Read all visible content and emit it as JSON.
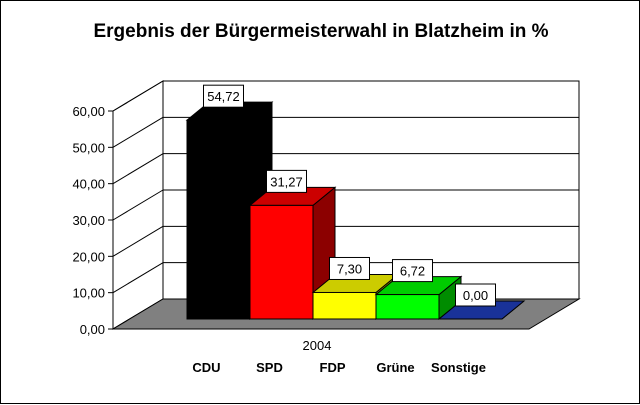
{
  "chart_data": {
    "type": "bar",
    "title": "Ergebnis der Bürgermeisterwahl in Blatzheim in %",
    "categories": [
      "2004"
    ],
    "series": [
      {
        "name": "CDU",
        "values": [
          54.72
        ],
        "color": "#000000",
        "label": "54,72"
      },
      {
        "name": "SPD",
        "values": [
          31.27
        ],
        "color": "#ff0000",
        "label": "31,27"
      },
      {
        "name": "FDP",
        "values": [
          7.3
        ],
        "color": "#ffff00",
        "label": "7,30"
      },
      {
        "name": "Grüne",
        "values": [
          6.72
        ],
        "color": "#00ff00",
        "label": "6,72"
      },
      {
        "name": "Sonstige",
        "values": [
          0.0
        ],
        "color": "#1f3fbf",
        "label": "0,00"
      }
    ],
    "ylim": [
      0,
      60
    ],
    "yticks": [
      "0,00",
      "10,00",
      "20,00",
      "30,00",
      "40,00",
      "50,00",
      "60,00"
    ],
    "grid": true,
    "legend_placement": "bottom",
    "view": "3d"
  }
}
